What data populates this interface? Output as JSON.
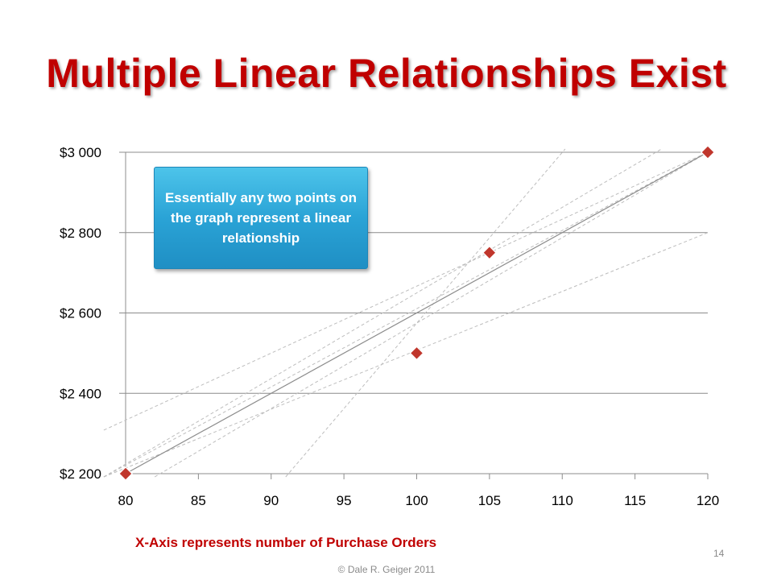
{
  "slide": {
    "title": "Multiple Linear Relationships Exist",
    "callout_text": "Essentially any two points on the graph represent a linear relationship",
    "xaxis_caption": "X-Axis represents number of Purchase Orders",
    "page_number": "14",
    "copyright": "© Dale R. Geiger 2011"
  },
  "colors": {
    "title": "#c00000",
    "marker": "#c0362c",
    "callout": "#2aa3d6",
    "grid": "#8c8c8c",
    "fit_line": "#8c8c8c",
    "dashed_lines": "#bdbdbd"
  },
  "chart_data": {
    "type": "scatter",
    "x": [
      80,
      100,
      105,
      120
    ],
    "y": [
      2200,
      2500,
      2750,
      3000
    ],
    "xlim": [
      80,
      120
    ],
    "ylim": [
      2200,
      3000
    ],
    "x_ticks": [
      80,
      85,
      90,
      95,
      100,
      105,
      110,
      115,
      120
    ],
    "x_tick_labels": [
      "80",
      "85",
      "90",
      "95",
      "100",
      "105",
      "110",
      "115",
      "120"
    ],
    "y_ticks": [
      2200,
      2400,
      2600,
      2800,
      3000
    ],
    "y_tick_labels": [
      "$2 200",
      "$2 400",
      "$2 600",
      "$2 800",
      "$3 000"
    ],
    "grid": "horizontal",
    "solid_line": {
      "from": [
        80,
        2200
      ],
      "to": [
        120,
        3000
      ]
    },
    "dashed_pairs": [
      [
        0,
        1
      ],
      [
        0,
        2
      ],
      [
        0,
        3
      ],
      [
        1,
        2
      ],
      [
        1,
        3
      ],
      [
        2,
        3
      ]
    ]
  }
}
